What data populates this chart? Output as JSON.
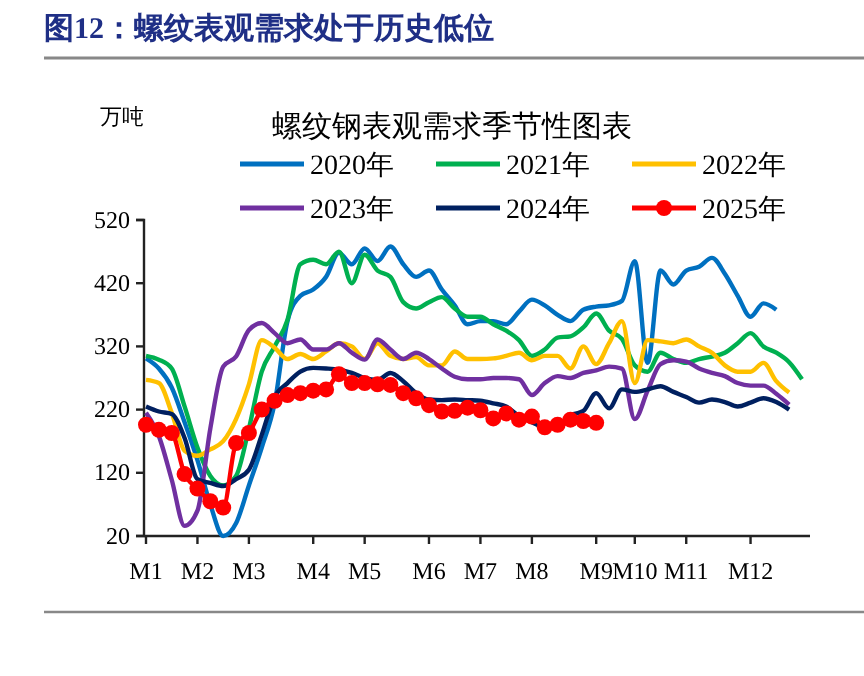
{
  "chart_data": {
    "type": "line",
    "title": "图12：螺纹表观需求处于历史低位",
    "subtitle": "螺纹钢表观需求季节性图表",
    "ylabel": "万吨",
    "categories": [
      "M1",
      null,
      null,
      null,
      "M2",
      null,
      null,
      null,
      "M3",
      null,
      null,
      null,
      null,
      "M4",
      null,
      null,
      null,
      "M5",
      null,
      null,
      null,
      null,
      "M6",
      null,
      null,
      null,
      "M7",
      null,
      null,
      null,
      "M8",
      null,
      null,
      null,
      null,
      "M9",
      null,
      null,
      "M10",
      null,
      null,
      null,
      "M11",
      null,
      null,
      null,
      null,
      "M12",
      null,
      null,
      null,
      null
    ],
    "ylim": [
      20,
      520
    ],
    "yticks": [
      20,
      120,
      220,
      320,
      420,
      520
    ],
    "grid": false,
    "legend": "top",
    "series": [
      {
        "name": "2020年",
        "color": "#0070c0",
        "values": [
          301,
          285,
          255,
          200,
          140,
          70,
          20,
          40,
          100,
          160,
          230,
          360,
          400,
          410,
          430,
          468,
          450,
          475,
          455,
          478,
          450,
          430,
          440,
          410,
          385,
          355,
          360,
          360,
          355,
          375,
          394,
          385,
          370,
          360,
          378,
          383,
          385,
          392,
          455,
          294,
          440,
          418,
          440,
          446,
          460,
          435,
          400,
          367,
          388,
          378,
          null,
          null
        ]
      },
      {
        "name": "2021年",
        "color": "#00b050",
        "values": [
          305,
          299,
          285,
          225,
          160,
          115,
          100,
          115,
          190,
          280,
          320,
          362,
          450,
          457,
          450,
          470,
          420,
          465,
          440,
          430,
          390,
          380,
          390,
          398,
          380,
          367,
          367,
          355,
          345,
          330,
          305,
          315,
          334,
          336,
          350,
          372,
          345,
          332,
          290,
          280,
          310,
          300,
          294,
          300,
          304,
          310,
          325,
          341,
          320,
          310,
          295,
          268
        ]
      },
      {
        "name": "2022年",
        "color": "#ffc000",
        "values": [
          267,
          262,
          215,
          155,
          147,
          157,
          170,
          205,
          260,
          330,
          318,
          300,
          308,
          300,
          312,
          325,
          320,
          300,
          325,
          305,
          300,
          303,
          290,
          290,
          312,
          300,
          300,
          301,
          305,
          310,
          298,
          305,
          305,
          285,
          320,
          292,
          325,
          360,
          262,
          330,
          328,
          325,
          331,
          320,
          310,
          290,
          280,
          280,
          294,
          265,
          247,
          null
        ]
      },
      {
        "name": "2023年",
        "color": "#7030a0",
        "values": [
          215,
          178,
          109,
          36,
          60,
          190,
          288,
          304,
          346,
          357,
          341,
          325,
          331,
          315,
          315,
          325,
          310,
          299,
          331,
          315,
          300,
          310,
          300,
          285,
          272,
          268,
          268,
          270,
          270,
          268,
          243,
          262,
          273,
          270,
          278,
          282,
          288,
          285,
          205,
          250,
          292,
          298,
          296,
          285,
          278,
          273,
          262,
          258,
          258,
          245,
          228,
          null
        ]
      },
      {
        "name": "2024年",
        "color": "#002060",
        "values": [
          225,
          217,
          213,
          175,
          110,
          104,
          99,
          110,
          125,
          180,
          240,
          262,
          280,
          286,
          285,
          283,
          278,
          270,
          267,
          278,
          265,
          246,
          236,
          235,
          236,
          235,
          234,
          230,
          225,
          210,
          200,
          190,
          null,
          212,
          218,
          246,
          222,
          252,
          248,
          252,
          257,
          248,
          240,
          231,
          236,
          232,
          225,
          231,
          238,
          232,
          220,
          null
        ]
      },
      {
        "name": "2025年",
        "color": "#ff0000",
        "marker": "circle",
        "values": [
          196,
          188,
          183,
          118,
          95,
          75,
          65,
          167,
          183,
          220,
          234,
          243,
          246,
          250,
          252,
          276,
          262,
          262,
          260,
          259,
          246,
          238,
          227,
          217,
          218,
          223,
          219,
          206,
          214,
          204,
          209,
          192,
          196,
          204,
          202,
          199,
          null,
          null,
          null,
          null,
          null,
          null,
          null,
          null,
          null,
          null,
          null,
          null,
          null,
          null,
          null,
          null
        ]
      }
    ]
  }
}
